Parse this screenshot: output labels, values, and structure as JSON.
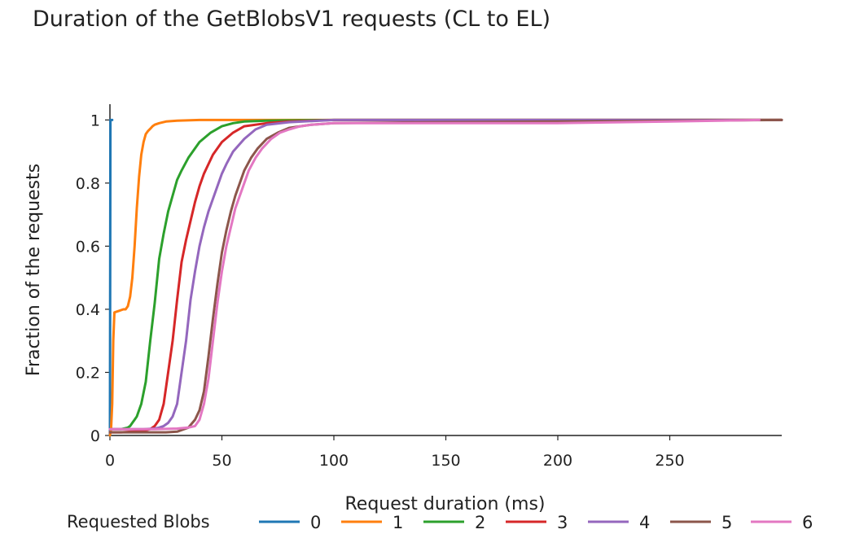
{
  "chart_data": {
    "type": "line",
    "title": "Duration of the GetBlobsV1 requests (CL to EL)",
    "xlabel": "Request duration (ms)",
    "ylabel": "Fraction of the requests",
    "xlim": [
      0,
      300
    ],
    "ylim": [
      0,
      1.05
    ],
    "xticks": [
      0,
      50,
      100,
      150,
      200,
      250
    ],
    "xtick_labels": [
      "0",
      "50",
      "100",
      "150",
      "200",
      "250"
    ],
    "yticks": [
      0,
      0.2,
      0.4,
      0.6,
      0.8,
      1
    ],
    "ytick_labels": [
      "0",
      "0.2",
      "0.4",
      "0.6",
      "0.8",
      "1"
    ],
    "grid": false,
    "legend": {
      "title": "Requested Blobs",
      "placement": "bottom"
    },
    "series": [
      {
        "name": "0",
        "color": "#1f77b4",
        "x": [
          0,
          0.2,
          0.4,
          0.6,
          1
        ],
        "y": [
          0,
          1,
          1,
          1,
          1
        ]
      },
      {
        "name": "1",
        "color": "#ff7f0e",
        "x": [
          0,
          0.5,
          1,
          1.5,
          2,
          4,
          6,
          7,
          8,
          9,
          10,
          11,
          12,
          13,
          14,
          15,
          16,
          17,
          18,
          19,
          20,
          22,
          25,
          30,
          40,
          300
        ],
        "y": [
          0,
          0.02,
          0.1,
          0.3,
          0.39,
          0.395,
          0.4,
          0.4,
          0.41,
          0.44,
          0.5,
          0.6,
          0.72,
          0.82,
          0.89,
          0.93,
          0.955,
          0.965,
          0.972,
          0.98,
          0.985,
          0.99,
          0.995,
          0.998,
          1,
          1
        ]
      },
      {
        "name": "2",
        "color": "#2ca02c",
        "x": [
          0,
          5,
          8,
          9,
          10,
          11,
          12,
          14,
          16,
          18,
          20,
          22,
          24,
          26,
          28,
          30,
          32,
          35,
          38,
          40,
          45,
          50,
          55,
          60,
          70,
          100,
          300
        ],
        "y": [
          0.02,
          0.02,
          0.025,
          0.03,
          0.04,
          0.05,
          0.06,
          0.1,
          0.17,
          0.3,
          0.42,
          0.56,
          0.64,
          0.71,
          0.76,
          0.81,
          0.84,
          0.88,
          0.91,
          0.93,
          0.96,
          0.98,
          0.99,
          0.995,
          0.998,
          1,
          1
        ]
      },
      {
        "name": "3",
        "color": "#d62728",
        "x": [
          0,
          5,
          10,
          15,
          18,
          20,
          22,
          24,
          26,
          28,
          30,
          32,
          34,
          36,
          38,
          40,
          42,
          44,
          46,
          48,
          50,
          55,
          60,
          70,
          80,
          100,
          300
        ],
        "y": [
          0.01,
          0.01,
          0.012,
          0.015,
          0.02,
          0.03,
          0.05,
          0.1,
          0.2,
          0.3,
          0.43,
          0.55,
          0.62,
          0.68,
          0.74,
          0.79,
          0.83,
          0.86,
          0.89,
          0.91,
          0.93,
          0.96,
          0.98,
          0.99,
          0.995,
          1,
          1
        ]
      },
      {
        "name": "4",
        "color": "#9467bd",
        "x": [
          0,
          10,
          15,
          20,
          22,
          24,
          26,
          28,
          30,
          32,
          34,
          36,
          38,
          40,
          42,
          44,
          46,
          48,
          50,
          52,
          55,
          60,
          65,
          70,
          80,
          100,
          300
        ],
        "y": [
          0.02,
          0.02,
          0.02,
          0.022,
          0.025,
          0.03,
          0.04,
          0.06,
          0.1,
          0.2,
          0.3,
          0.43,
          0.52,
          0.6,
          0.66,
          0.71,
          0.75,
          0.79,
          0.83,
          0.86,
          0.9,
          0.94,
          0.97,
          0.985,
          0.993,
          1,
          1
        ]
      },
      {
        "name": "5",
        "color": "#8c564b",
        "x": [
          0,
          10,
          20,
          25,
          30,
          35,
          38,
          40,
          42,
          44,
          46,
          48,
          50,
          52,
          54,
          56,
          58,
          60,
          63,
          66,
          70,
          75,
          80,
          90,
          100,
          150,
          200,
          300
        ],
        "y": [
          0.01,
          0.01,
          0.01,
          0.01,
          0.012,
          0.025,
          0.05,
          0.08,
          0.14,
          0.25,
          0.37,
          0.48,
          0.58,
          0.65,
          0.71,
          0.76,
          0.8,
          0.84,
          0.88,
          0.91,
          0.94,
          0.96,
          0.975,
          0.985,
          0.99,
          0.993,
          0.995,
          1
        ]
      },
      {
        "name": "6",
        "color": "#e377c2",
        "x": [
          0,
          10,
          20,
          30,
          35,
          38,
          40,
          42,
          44,
          46,
          48,
          50,
          52,
          54,
          56,
          58,
          60,
          62,
          65,
          68,
          72,
          76,
          80,
          85,
          90,
          100,
          150,
          200,
          250,
          290
        ],
        "y": [
          0.02,
          0.02,
          0.02,
          0.022,
          0.025,
          0.03,
          0.05,
          0.1,
          0.18,
          0.3,
          0.42,
          0.52,
          0.6,
          0.66,
          0.72,
          0.76,
          0.8,
          0.84,
          0.88,
          0.91,
          0.94,
          0.96,
          0.97,
          0.98,
          0.985,
          0.99,
          0.99,
          0.99,
          0.995,
          1
        ]
      }
    ]
  }
}
